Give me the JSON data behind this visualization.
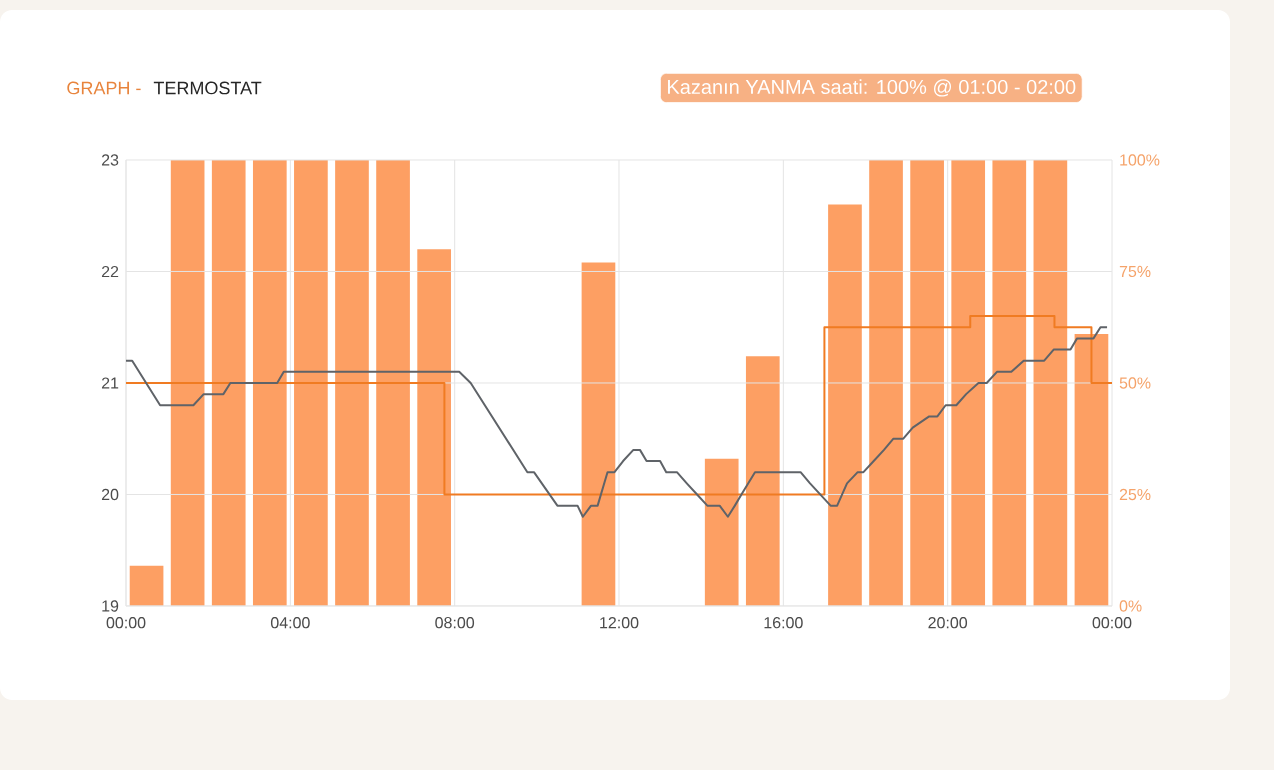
{
  "chart_data": {
    "type": "line",
    "title": "GRAPH -",
    "subtitle": "TERMOSTAT",
    "annotations": [
      "Kazanın YANMA saati: 100% @ 01:00 - 02:00"
    ],
    "xlim": [
      0,
      24
    ],
    "xticks": [
      {
        "value": 0,
        "label": "00:00"
      },
      {
        "value": 4,
        "label": "04:00"
      },
      {
        "value": 8,
        "label": "08:00"
      },
      {
        "value": 12,
        "label": "12:00"
      },
      {
        "value": 16,
        "label": "16:00"
      },
      {
        "value": 20,
        "label": "20:00"
      },
      {
        "value": 24,
        "label": "00:00"
      }
    ],
    "ylim": [
      19,
      23
    ],
    "yticks": [
      19,
      20,
      21,
      22,
      23
    ],
    "y2lim": [
      0,
      100
    ],
    "y2ticks": [
      {
        "value": 0,
        "label": "0%"
      },
      {
        "value": 25,
        "label": "25%"
      },
      {
        "value": 50,
        "label": "50%"
      },
      {
        "value": 75,
        "label": "75%"
      },
      {
        "value": 100,
        "label": "100%"
      }
    ],
    "grid": true,
    "series": [
      {
        "type": "bar",
        "axis": "y2",
        "color": "#fd9f63",
        "x": [
          0.5,
          1.5,
          2.5,
          3.5,
          4.5,
          5.5,
          6.5,
          7.5,
          8.5,
          9.5,
          10.5,
          11.5,
          12.5,
          13.5,
          14.5,
          15.5,
          16.5,
          17.5,
          18.5,
          19.5,
          20.5,
          21.5,
          22.5,
          23.5
        ],
        "values": [
          9,
          100,
          100,
          100,
          100,
          100,
          100,
          80,
          0,
          0,
          0,
          77,
          0,
          0,
          33,
          56,
          0,
          90,
          100,
          100,
          100,
          100,
          100,
          61
        ]
      },
      {
        "type": "step",
        "color": "#f07b22",
        "x": [
          0,
          7.75,
          17,
          20.55,
          22.6,
          23.5,
          24
        ],
        "values": [
          21,
          20,
          21.5,
          21.6,
          21.5,
          21,
          21
        ]
      },
      {
        "color": "#5f6368",
        "x": [
          0,
          0.15,
          0.83,
          1.64,
          1.89,
          2.37,
          2.54,
          3.68,
          3.84,
          8.11,
          8.39,
          9.77,
          9.93,
          10.5,
          10.99,
          11.12,
          11.32,
          11.48,
          11.72,
          11.89,
          12.1,
          12.35,
          12.51,
          12.67,
          13.0,
          13.15,
          13.41,
          13.65,
          13.9,
          14.15,
          14.45,
          14.65,
          14.82,
          14.98,
          15.31,
          16.42,
          16.65,
          16.9,
          17.15,
          17.31,
          17.55,
          17.81,
          17.95,
          18.2,
          18.45,
          18.68,
          18.92,
          19.15,
          19.55,
          19.75,
          19.95,
          20.21,
          20.45,
          20.75,
          20.95,
          21.2,
          21.55,
          21.85,
          22.35,
          22.58,
          22.99,
          23.15,
          23.55,
          23.72,
          23.88
        ],
        "values": [
          21.2,
          21.2,
          20.8,
          20.8,
          20.9,
          20.9,
          21.0,
          21.0,
          21.1,
          21.1,
          21.0,
          20.2,
          20.2,
          19.9,
          19.9,
          19.8,
          19.9,
          19.9,
          20.2,
          20.2,
          20.3,
          20.4,
          20.4,
          20.3,
          20.3,
          20.2,
          20.2,
          20.1,
          20.0,
          19.9,
          19.9,
          19.8,
          19.9,
          20.0,
          20.2,
          20.2,
          20.1,
          20.0,
          19.9,
          19.9,
          20.1,
          20.2,
          20.2,
          20.3,
          20.4,
          20.5,
          20.5,
          20.6,
          20.7,
          20.7,
          20.8,
          20.8,
          20.9,
          21.0,
          21.0,
          21.1,
          21.1,
          21.2,
          21.2,
          21.3,
          21.3,
          21.4,
          21.4,
          21.5,
          21.5
        ]
      }
    ]
  }
}
